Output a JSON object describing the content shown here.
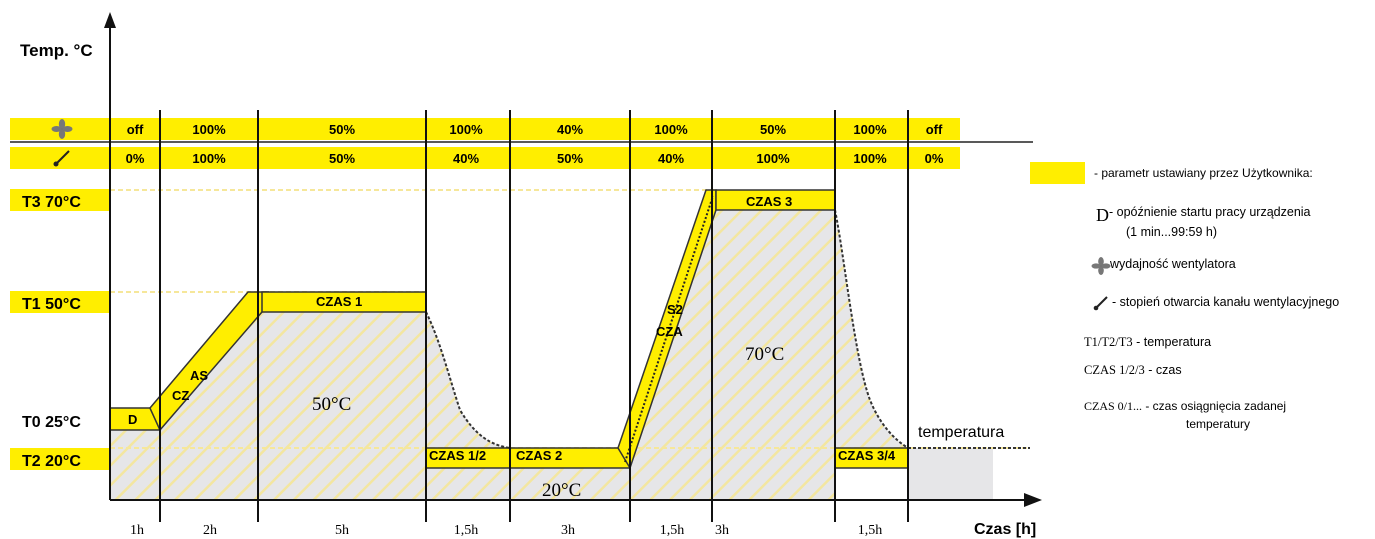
{
  "axes": {
    "y_label": "Temp. °C",
    "x_label": "Czas [h]"
  },
  "temperature_levels": [
    {
      "label": "T3 70°C",
      "value": 70
    },
    {
      "label": "T1 50°C",
      "value": 50
    },
    {
      "label": "T0 25°C",
      "value": 25
    },
    {
      "label": "T2 20°C",
      "value": 20
    }
  ],
  "fan_row": {
    "icon": "fan-icon",
    "values": [
      "off",
      "100%",
      "50%",
      "100%",
      "40%",
      "100%",
      "50%",
      "100%",
      "off"
    ]
  },
  "damper_row": {
    "icon": "damper-icon",
    "values": [
      "0%",
      "100%",
      "50%",
      "40%",
      "50%",
      "40%",
      "100%",
      "100%",
      "0%"
    ]
  },
  "durations": [
    "1h",
    "2h",
    "5h",
    "1,5h",
    "3h",
    "1,5h",
    "3h",
    "1,5h"
  ],
  "segment_labels": {
    "d": "D",
    "cz": "CZ",
    "as": "AS",
    "czas1": "CZAS 1",
    "czas12": "CZAS 1/2",
    "czas2": "CZAS 2",
    "s2": "S2",
    "cza": "CZA",
    "czas3": "CZAS 3",
    "czas34": "CZAS 3/4"
  },
  "area_labels": {
    "a50": "50°C",
    "a20": "20°C",
    "a70": "70°C"
  },
  "ambient_label": "temperatura",
  "legend": {
    "user_param": "- parametr ustawiany przez Użytkownika:",
    "d_letter": "D",
    "d_text_1": "- opóźnienie startu pracy urządzenia",
    "d_text_2": "(1 min...99:59 h)",
    "fan_text": "wydajność wentylatora",
    "damper_text": "- stopień otwarcia kanału wentylacyjnego",
    "t_code": "T1/T2/T3",
    "t_text": " - temperatura",
    "czas_code": "CZAS 1/2/3",
    "czas_text": " - czas",
    "czas0_code": "CZAS 0/1...",
    "czas0_text_1": " - czas osiągnięcia zadanej",
    "czas0_text_2": "temperatury"
  },
  "colors": {
    "highlight": "#ffee00",
    "area_fill": "#e6e6e8",
    "hatch": "#f3e7a0",
    "dashed_level": "#f6e79a"
  }
}
